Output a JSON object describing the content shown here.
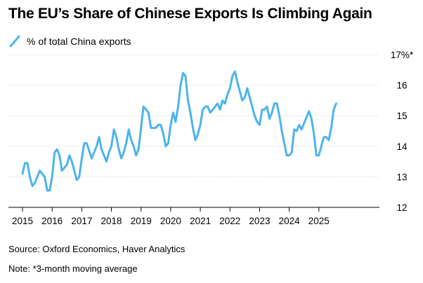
{
  "title": "The EU’s Share of Chinese Exports Is Climbing Again",
  "source": "Source: Oxford Economics, Haver Analytics",
  "note": "Note: *3-month moving average",
  "colors": {
    "line": "#4cb4ec",
    "grid": "#d8d8d8",
    "axis": "#000000"
  },
  "chart_data": {
    "type": "line",
    "title": "The EU’s Share of Chinese Exports Is Climbing Again",
    "xlabel": "",
    "ylabel": "",
    "ylim": [
      12,
      17
    ],
    "y_ticks": [
      12,
      13,
      14,
      15,
      16,
      17
    ],
    "y_tick_labels": [
      "12",
      "13",
      "14",
      "15",
      "16",
      "17%*"
    ],
    "xlim": [
      2015,
      2026
    ],
    "x_ticks": [
      2015,
      2016,
      2017,
      2018,
      2019,
      2020,
      2021,
      2022,
      2023,
      2024,
      2025
    ],
    "x_tick_labels": [
      "2015",
      "2016",
      "2017",
      "2018",
      "2019",
      "2020",
      "2021",
      "2022",
      "2023",
      "2024",
      "2025"
    ],
    "grid": true,
    "legend_position": "top-left",
    "series": [
      {
        "name": "% of total China exports",
        "color": "#4cb4ec",
        "x": [
          "2015-01",
          "2015-02",
          "2015-03",
          "2015-04",
          "2015-05",
          "2015-06",
          "2015-07",
          "2015-08",
          "2015-09",
          "2015-10",
          "2015-11",
          "2015-12",
          "2016-01",
          "2016-02",
          "2016-03",
          "2016-04",
          "2016-05",
          "2016-06",
          "2016-07",
          "2016-08",
          "2016-09",
          "2016-10",
          "2016-11",
          "2016-12",
          "2017-01",
          "2017-02",
          "2017-03",
          "2017-04",
          "2017-05",
          "2017-06",
          "2017-07",
          "2017-08",
          "2017-09",
          "2017-10",
          "2017-11",
          "2017-12",
          "2018-01",
          "2018-02",
          "2018-03",
          "2018-04",
          "2018-05",
          "2018-06",
          "2018-07",
          "2018-08",
          "2018-09",
          "2018-10",
          "2018-11",
          "2018-12",
          "2019-01",
          "2019-02",
          "2019-03",
          "2019-04",
          "2019-05",
          "2019-06",
          "2019-07",
          "2019-08",
          "2019-09",
          "2019-10",
          "2019-11",
          "2019-12",
          "2020-01",
          "2020-02",
          "2020-03",
          "2020-04",
          "2020-05",
          "2020-06",
          "2020-07",
          "2020-08",
          "2020-09",
          "2020-10",
          "2020-11",
          "2020-12",
          "2021-01",
          "2021-02",
          "2021-03",
          "2021-04",
          "2021-05",
          "2021-06",
          "2021-07",
          "2021-08",
          "2021-09",
          "2021-10",
          "2021-11",
          "2021-12",
          "2022-01",
          "2022-02",
          "2022-03",
          "2022-04",
          "2022-05",
          "2022-06",
          "2022-07",
          "2022-08",
          "2022-09",
          "2022-10",
          "2022-11",
          "2022-12",
          "2023-01",
          "2023-02",
          "2023-03",
          "2023-04",
          "2023-05",
          "2023-06",
          "2023-07",
          "2023-08",
          "2023-09",
          "2023-10",
          "2023-11",
          "2023-12",
          "2024-01",
          "2024-02",
          "2024-03",
          "2024-04",
          "2024-05",
          "2024-06",
          "2024-07",
          "2024-08",
          "2024-09",
          "2024-10",
          "2024-11",
          "2024-12",
          "2025-01",
          "2025-02",
          "2025-03",
          "2025-04",
          "2025-05",
          "2025-06",
          "2025-07",
          "2025-08"
        ],
        "values": [
          13.1,
          13.45,
          13.45,
          13.0,
          12.7,
          12.8,
          13.0,
          13.2,
          13.1,
          13.0,
          12.55,
          12.55,
          13.0,
          13.8,
          13.9,
          13.7,
          13.2,
          13.3,
          13.4,
          13.7,
          13.5,
          13.2,
          12.9,
          13.0,
          13.6,
          14.1,
          14.1,
          13.85,
          13.6,
          13.8,
          14.0,
          14.3,
          13.9,
          13.7,
          13.5,
          13.8,
          14.0,
          14.55,
          14.3,
          13.9,
          13.6,
          13.8,
          14.1,
          14.55,
          14.2,
          14.0,
          13.7,
          13.9,
          14.6,
          15.3,
          15.2,
          15.1,
          14.6,
          14.6,
          14.6,
          14.7,
          14.7,
          14.4,
          14.0,
          14.1,
          14.7,
          15.1,
          14.8,
          15.3,
          16.0,
          16.4,
          16.3,
          15.5,
          15.1,
          14.6,
          14.2,
          14.4,
          14.7,
          15.2,
          15.3,
          15.3,
          15.1,
          15.2,
          15.3,
          15.4,
          15.2,
          15.5,
          15.4,
          15.7,
          15.9,
          16.3,
          16.45,
          16.1,
          15.8,
          15.5,
          15.6,
          15.9,
          15.6,
          15.3,
          15.0,
          14.8,
          14.7,
          15.2,
          15.2,
          15.3,
          14.9,
          15.1,
          15.4,
          15.4,
          15.0,
          14.5,
          14.1,
          13.7,
          13.7,
          13.8,
          14.55,
          14.5,
          14.7,
          14.55,
          14.75,
          14.95,
          15.15,
          14.9,
          14.4,
          13.7,
          13.7,
          14.0,
          14.3,
          14.3,
          14.2,
          14.6,
          15.2,
          15.4
        ]
      }
    ]
  }
}
